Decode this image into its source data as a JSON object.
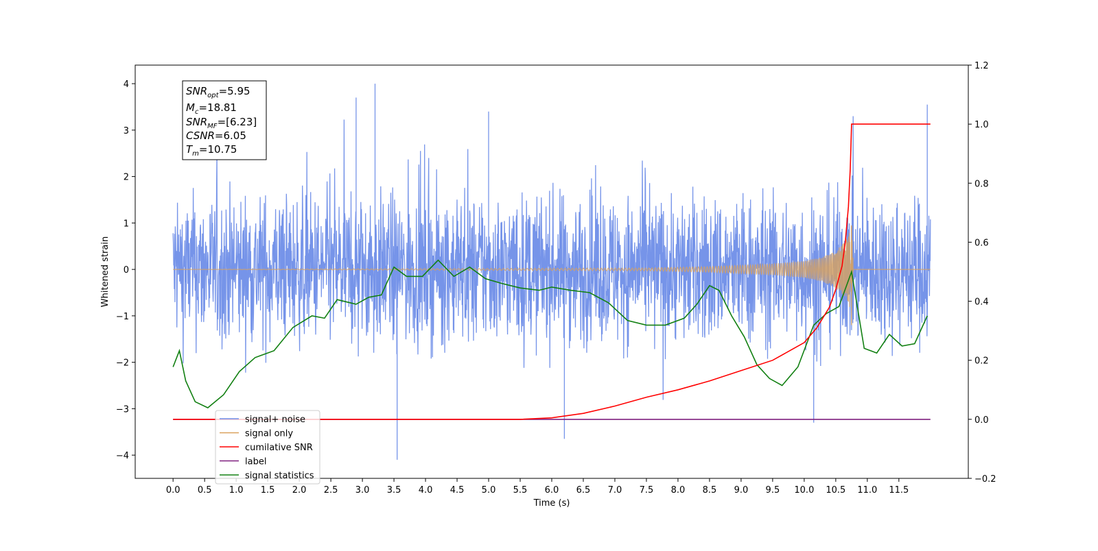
{
  "chart_data": {
    "type": "line",
    "xlabel": "Time (s)",
    "ylabel": "Whitened strain",
    "xlim": [
      -0.6,
      12.6
    ],
    "ylim": [
      -4.5,
      4.4
    ],
    "y2lim": [
      -0.2,
      1.2
    ],
    "x_ticks": [
      "0.0",
      "0.5",
      "1.0",
      "1.5",
      "2.0",
      "2.5",
      "3.0",
      "3.5",
      "4.0",
      "4.5",
      "5.0",
      "5.5",
      "6.0",
      "6.5",
      "7.0",
      "7.5",
      "8.0",
      "8.5",
      "9.0",
      "9.5",
      "10.0",
      "10.5",
      "11.0",
      "11.5"
    ],
    "x_tick_values": [
      0,
      0.5,
      1,
      1.5,
      2,
      2.5,
      3,
      3.5,
      4,
      4.5,
      5,
      5.5,
      6,
      6.5,
      7,
      7.5,
      8,
      8.5,
      9,
      9.5,
      10,
      10.5,
      11,
      11.5
    ],
    "y_ticks": [
      "−4",
      "−3",
      "−2",
      "−1",
      "0",
      "1",
      "2",
      "3",
      "4"
    ],
    "y_tick_values": [
      -4,
      -3,
      -2,
      -1,
      0,
      1,
      2,
      3,
      4
    ],
    "y2_ticks": [
      "−0.2",
      "0.0",
      "0.2",
      "0.4",
      "0.6",
      "0.8",
      "1.0",
      "1.2"
    ],
    "y2_tick_values": [
      -0.2,
      0,
      0.2,
      0.4,
      0.6,
      0.8,
      1.0,
      1.2
    ],
    "grid": false,
    "legend_position": "lower-left",
    "info_box": {
      "snr_opt": {
        "base": "SNR",
        "sub": "opt",
        "value": "=5.95"
      },
      "mc": {
        "base": "M",
        "sub": "c",
        "value": "=18.81"
      },
      "snr_mf": {
        "base": "SNR",
        "sub": "MF",
        "value": "=[6.23]"
      },
      "csnr": {
        "base": "CSNR",
        "sub": "",
        "value": "=6.05"
      },
      "tm": {
        "base": "T",
        "sub": "m",
        "value": "=10.75"
      }
    },
    "series": [
      {
        "name": "signal+ noise",
        "color": "#6f8ee8",
        "axis": "left",
        "description": "whitened noise, roughly ±1.5 band with spikes up to ±4, from 0 to 12 s",
        "band": [
          -1.5,
          1.5
        ],
        "spikes": [
          [
            3.2,
            4.0
          ],
          [
            3.55,
            -4.1
          ],
          [
            6.2,
            -3.65
          ],
          [
            2.9,
            3.7
          ],
          [
            11.95,
            3.55
          ],
          [
            10.15,
            -3.3
          ],
          [
            5.0,
            3.4
          ]
        ]
      },
      {
        "name": "signal only",
        "color": "#d9a15c",
        "axis": "left",
        "description": "chirp with amplitude growing toward merger at 10.75 s",
        "x": [
          0,
          7.5,
          8.5,
          9.5,
          10.0,
          10.3,
          10.5,
          10.65,
          10.75,
          10.78,
          12.0
        ],
        "amplitude": [
          0.0,
          0.03,
          0.06,
          0.12,
          0.18,
          0.27,
          0.4,
          0.6,
          0.95,
          0.0,
          0.0
        ]
      },
      {
        "name": "cumilative SNR",
        "color": "#ff0000",
        "axis": "right",
        "x": [
          0,
          5.5,
          6.0,
          6.5,
          7.0,
          7.5,
          8.0,
          8.5,
          9.0,
          9.5,
          10.0,
          10.2,
          10.4,
          10.5,
          10.6,
          10.65,
          10.7,
          10.73,
          10.75,
          12.0
        ],
        "values": [
          0,
          0,
          0.005,
          0.02,
          0.045,
          0.075,
          0.1,
          0.13,
          0.165,
          0.2,
          0.26,
          0.31,
          0.38,
          0.44,
          0.52,
          0.6,
          0.72,
          0.85,
          1.0,
          1.0
        ]
      },
      {
        "name": "label",
        "color": "#7f1f7f",
        "axis": "right",
        "x": [
          0,
          12.0
        ],
        "values": [
          0,
          0
        ]
      },
      {
        "name": "signal statistics",
        "color": "#128012",
        "axis": "left",
        "x": [
          0,
          0.1,
          0.2,
          0.35,
          0.55,
          0.8,
          1.05,
          1.3,
          1.6,
          1.9,
          2.2,
          2.4,
          2.6,
          2.9,
          3.1,
          3.3,
          3.5,
          3.7,
          3.95,
          4.2,
          4.45,
          4.7,
          4.95,
          5.2,
          5.5,
          5.8,
          6.0,
          6.3,
          6.6,
          6.9,
          7.2,
          7.5,
          7.8,
          8.1,
          8.3,
          8.5,
          8.65,
          8.85,
          9.05,
          9.25,
          9.45,
          9.65,
          9.9,
          10.15,
          10.35,
          10.55,
          10.75,
          10.95,
          11.15,
          11.35,
          11.55,
          11.75,
          11.95
        ],
        "values": [
          -2.1,
          -1.75,
          -2.4,
          -2.85,
          -2.98,
          -2.7,
          -2.2,
          -1.9,
          -1.75,
          -1.25,
          -1.0,
          -1.05,
          -0.65,
          -0.75,
          -0.6,
          -0.55,
          0.05,
          -0.15,
          -0.15,
          0.2,
          -0.15,
          0.05,
          -0.2,
          -0.3,
          -0.4,
          -0.45,
          -0.38,
          -0.45,
          -0.5,
          -0.72,
          -1.1,
          -1.2,
          -1.2,
          -1.05,
          -0.75,
          -0.35,
          -0.45,
          -1.0,
          -1.45,
          -2.05,
          -2.35,
          -2.5,
          -2.1,
          -1.2,
          -0.95,
          -0.8,
          -0.05,
          -1.7,
          -1.8,
          -1.4,
          -1.65,
          -1.6,
          -1.0
        ]
      }
    ]
  }
}
